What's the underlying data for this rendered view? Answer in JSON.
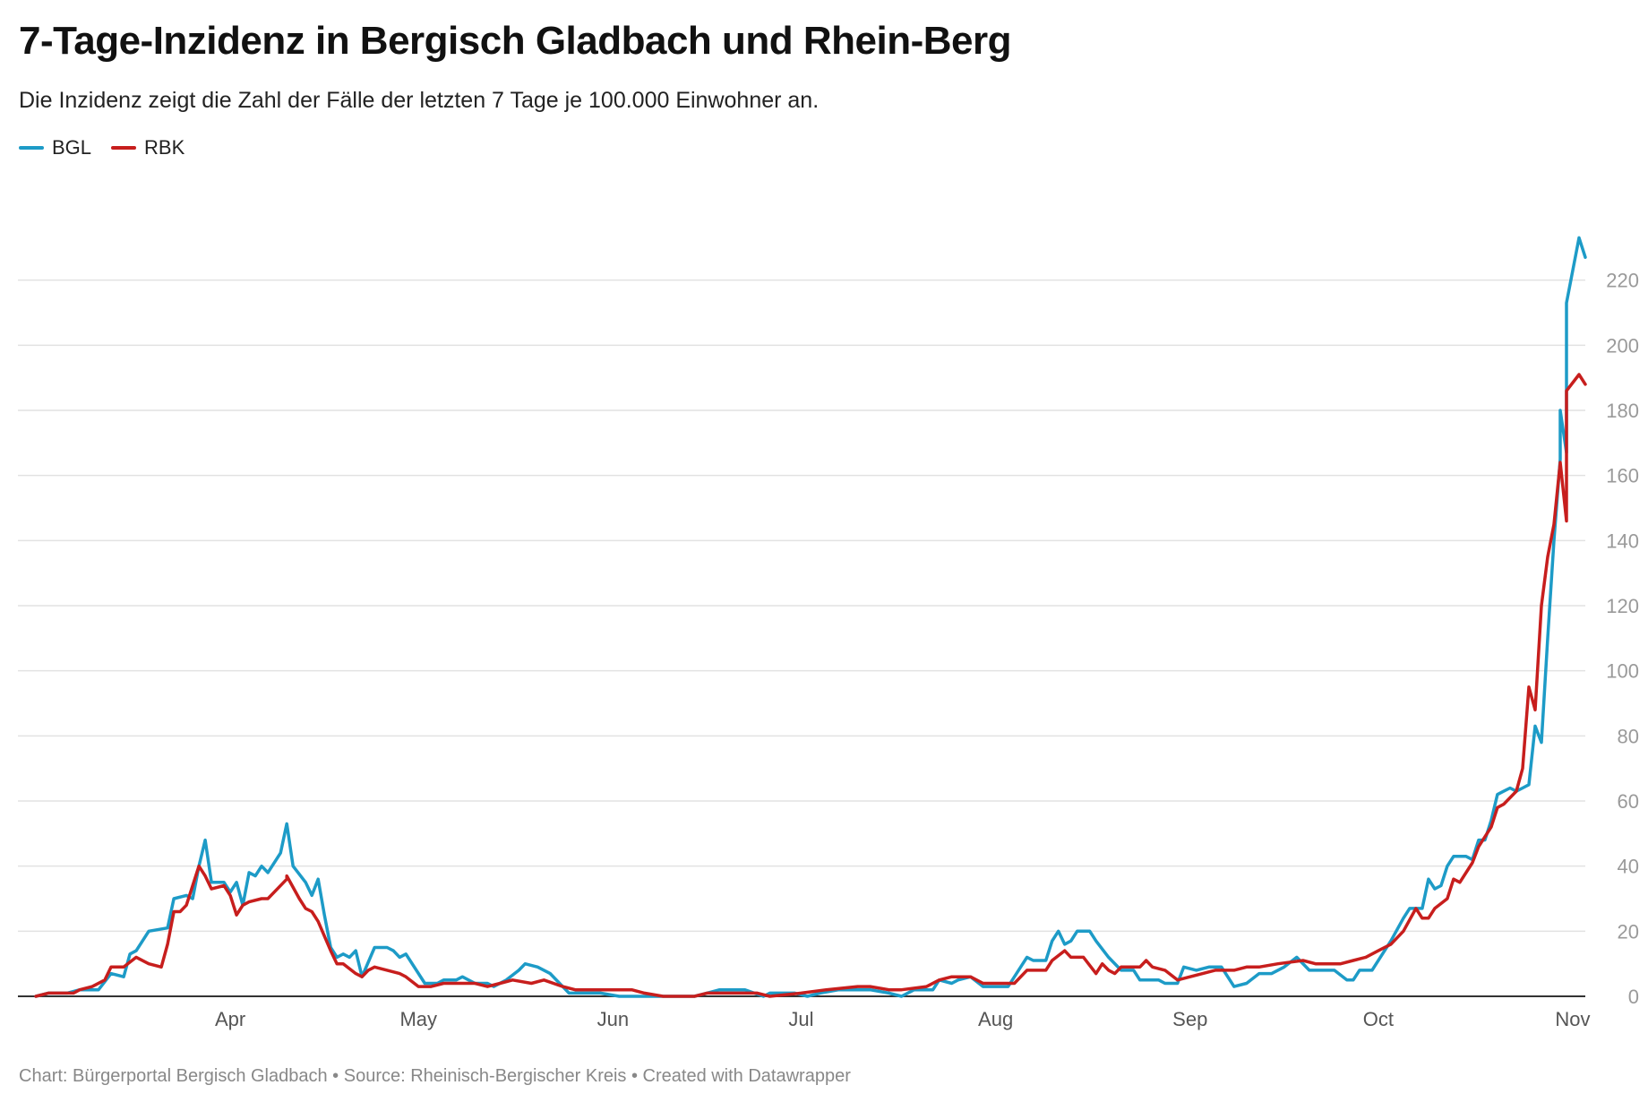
{
  "header": {
    "title": "7-Tage-Inzidenz in Bergisch Gladbach und Rhein-Berg",
    "subtitle": "Die Inzidenz zeigt die Zahl der Fälle der letzten 7 Tage je 100.000 Einwohner an."
  },
  "footer": {
    "text": "Chart: Bürgerportal Bergisch Gladbach • Source: Rheinisch-Bergischer Kreis • Created with Datawrapper"
  },
  "chart_data": {
    "type": "line",
    "title": "7-Tage-Inzidenz in Bergisch Gladbach und Rhein-Berg",
    "subtitle": "Die Inzidenz zeigt die Zahl der Fälle der letzten 7 Tage je 100.000 Einwohner an.",
    "xlabel": "",
    "ylabel": "",
    "x_range": [
      "2020-03-01",
      "2020-11-03"
    ],
    "ylim": [
      0,
      240
    ],
    "y_ticks": [
      0,
      20,
      40,
      60,
      80,
      100,
      120,
      140,
      160,
      180,
      200,
      220
    ],
    "x_ticks": [
      {
        "label": "Apr",
        "date": "2020-04-01"
      },
      {
        "label": "May",
        "date": "2020-05-01"
      },
      {
        "label": "Jun",
        "date": "2020-06-01"
      },
      {
        "label": "Jul",
        "date": "2020-07-01"
      },
      {
        "label": "Aug",
        "date": "2020-08-01"
      },
      {
        "label": "Sep",
        "date": "2020-09-01"
      },
      {
        "label": "Oct",
        "date": "2020-10-01"
      },
      {
        "label": "Nov",
        "date": "2020-11-01"
      }
    ],
    "grid": true,
    "legend_position": "top-left",
    "series": [
      {
        "name": "BGL",
        "color": "#1d9bc7",
        "points": [
          [
            "2020-03-01",
            0
          ],
          [
            "2020-03-03",
            1
          ],
          [
            "2020-03-06",
            1
          ],
          [
            "2020-03-08",
            2
          ],
          [
            "2020-03-11",
            2
          ],
          [
            "2020-03-13",
            7
          ],
          [
            "2020-03-15",
            6
          ],
          [
            "2020-03-16",
            13
          ],
          [
            "2020-03-17",
            14
          ],
          [
            "2020-03-19",
            20
          ],
          [
            "2020-03-22",
            21
          ],
          [
            "2020-03-23",
            30
          ],
          [
            "2020-03-25",
            31
          ],
          [
            "2020-03-26",
            30
          ],
          [
            "2020-03-27",
            40
          ],
          [
            "2020-03-28",
            48
          ],
          [
            "2020-03-29",
            35
          ],
          [
            "2020-03-31",
            35
          ],
          [
            "2020-04-01",
            32
          ],
          [
            "2020-04-02",
            35
          ],
          [
            "2020-04-03",
            28
          ],
          [
            "2020-04-04",
            38
          ],
          [
            "2020-04-05",
            37
          ],
          [
            "2020-04-06",
            40
          ],
          [
            "2020-04-07",
            38
          ],
          [
            "2020-04-09",
            44
          ],
          [
            "2020-04-10",
            53
          ],
          [
            "2020-04-11",
            40
          ],
          [
            "2020-04-13",
            35
          ],
          [
            "2020-04-14",
            31
          ],
          [
            "2020-04-15",
            36
          ],
          [
            "2020-04-16",
            25
          ],
          [
            "2020-04-17",
            15
          ],
          [
            "2020-04-18",
            12
          ],
          [
            "2020-04-19",
            13
          ],
          [
            "2020-04-20",
            12
          ],
          [
            "2020-04-21",
            14
          ],
          [
            "2020-04-22",
            6
          ],
          [
            "2020-04-24",
            15
          ],
          [
            "2020-04-26",
            15
          ],
          [
            "2020-04-27",
            14
          ],
          [
            "2020-04-28",
            12
          ],
          [
            "2020-04-29",
            13
          ],
          [
            "2020-05-02",
            4
          ],
          [
            "2020-05-04",
            4
          ],
          [
            "2020-05-05",
            5
          ],
          [
            "2020-05-07",
            5
          ],
          [
            "2020-05-08",
            6
          ],
          [
            "2020-05-10",
            4
          ],
          [
            "2020-05-12",
            4
          ],
          [
            "2020-05-13",
            3
          ],
          [
            "2020-05-15",
            5
          ],
          [
            "2020-05-17",
            8
          ],
          [
            "2020-05-18",
            10
          ],
          [
            "2020-05-20",
            9
          ],
          [
            "2020-05-22",
            7
          ],
          [
            "2020-05-25",
            1
          ],
          [
            "2020-05-30",
            1
          ],
          [
            "2020-06-02",
            0
          ],
          [
            "2020-06-10",
            0
          ],
          [
            "2020-06-14",
            0
          ],
          [
            "2020-06-16",
            1
          ],
          [
            "2020-06-18",
            2
          ],
          [
            "2020-06-22",
            2
          ],
          [
            "2020-06-25",
            0
          ],
          [
            "2020-06-26",
            1
          ],
          [
            "2020-06-30",
            1
          ],
          [
            "2020-07-02",
            0
          ],
          [
            "2020-07-04",
            1
          ],
          [
            "2020-07-07",
            2
          ],
          [
            "2020-07-10",
            2
          ],
          [
            "2020-07-12",
            2
          ],
          [
            "2020-07-15",
            1
          ],
          [
            "2020-07-17",
            0
          ],
          [
            "2020-07-19",
            2
          ],
          [
            "2020-07-22",
            2
          ],
          [
            "2020-07-23",
            5
          ],
          [
            "2020-07-25",
            4
          ],
          [
            "2020-07-26",
            5
          ],
          [
            "2020-07-28",
            6
          ],
          [
            "2020-07-30",
            3
          ],
          [
            "2020-08-01",
            3
          ],
          [
            "2020-08-03",
            3
          ],
          [
            "2020-08-06",
            12
          ],
          [
            "2020-08-07",
            11
          ],
          [
            "2020-08-09",
            11
          ],
          [
            "2020-08-10",
            17
          ],
          [
            "2020-08-11",
            20
          ],
          [
            "2020-08-12",
            16
          ],
          [
            "2020-08-13",
            17
          ],
          [
            "2020-08-14",
            20
          ],
          [
            "2020-08-16",
            20
          ],
          [
            "2020-08-17",
            17
          ],
          [
            "2020-08-19",
            12
          ],
          [
            "2020-08-21",
            8
          ],
          [
            "2020-08-23",
            8
          ],
          [
            "2020-08-24",
            5
          ],
          [
            "2020-08-27",
            5
          ],
          [
            "2020-08-28",
            4
          ],
          [
            "2020-08-30",
            4
          ],
          [
            "2020-08-31",
            9
          ],
          [
            "2020-09-02",
            8
          ],
          [
            "2020-09-04",
            9
          ],
          [
            "2020-09-06",
            9
          ],
          [
            "2020-09-08",
            3
          ],
          [
            "2020-09-10",
            4
          ],
          [
            "2020-09-12",
            7
          ],
          [
            "2020-09-14",
            7
          ],
          [
            "2020-09-16",
            9
          ],
          [
            "2020-09-18",
            12
          ],
          [
            "2020-09-20",
            8
          ],
          [
            "2020-09-24",
            8
          ],
          [
            "2020-09-26",
            5
          ],
          [
            "2020-09-27",
            5
          ],
          [
            "2020-09-28",
            8
          ],
          [
            "2020-09-30",
            8
          ],
          [
            "2020-10-02",
            14
          ],
          [
            "2020-10-03",
            17
          ],
          [
            "2020-10-05",
            24
          ],
          [
            "2020-10-06",
            27
          ],
          [
            "2020-10-08",
            27
          ],
          [
            "2020-10-09",
            36
          ],
          [
            "2020-10-10",
            33
          ],
          [
            "2020-10-11",
            34
          ],
          [
            "2020-10-12",
            40
          ],
          [
            "2020-10-13",
            43
          ],
          [
            "2020-10-15",
            43
          ],
          [
            "2020-10-16",
            42
          ],
          [
            "2020-10-17",
            48
          ],
          [
            "2020-10-18",
            48
          ],
          [
            "2020-10-19",
            54
          ],
          [
            "2020-10-20",
            62
          ],
          [
            "2020-10-21",
            63
          ],
          [
            "2020-10-22",
            64
          ],
          [
            "2020-10-23",
            63
          ],
          [
            "2020-10-24",
            64
          ],
          [
            "2020-10-25",
            65
          ],
          [
            "2020-10-26",
            83
          ],
          [
            "2020-10-27",
            78
          ],
          [
            "2020-10-28",
            110
          ],
          [
            "2020-10-29",
            140
          ],
          [
            "2020-10-30",
            165
          ],
          [
            "2020-10-30",
            180
          ],
          [
            "2020-10-31",
            167
          ],
          [
            "2020-10-31",
            213
          ],
          [
            "2020-11-02",
            233
          ],
          [
            "2020-11-03",
            227
          ]
        ]
      },
      {
        "name": "RBK",
        "color": "#c71e1d",
        "points": [
          [
            "2020-03-01",
            0
          ],
          [
            "2020-03-03",
            1
          ],
          [
            "2020-03-07",
            1
          ],
          [
            "2020-03-08",
            2
          ],
          [
            "2020-03-10",
            3
          ],
          [
            "2020-03-12",
            5
          ],
          [
            "2020-03-13",
            9
          ],
          [
            "2020-03-15",
            9
          ],
          [
            "2020-03-17",
            12
          ],
          [
            "2020-03-19",
            10
          ],
          [
            "2020-03-21",
            9
          ],
          [
            "2020-03-22",
            16
          ],
          [
            "2020-03-23",
            26
          ],
          [
            "2020-03-24",
            26
          ],
          [
            "2020-03-25",
            28
          ],
          [
            "2020-03-27",
            40
          ],
          [
            "2020-03-28",
            37
          ],
          [
            "2020-03-29",
            33
          ],
          [
            "2020-03-31",
            34
          ],
          [
            "2020-04-01",
            31
          ],
          [
            "2020-04-02",
            25
          ],
          [
            "2020-04-03",
            28
          ],
          [
            "2020-04-04",
            29
          ],
          [
            "2020-04-06",
            30
          ],
          [
            "2020-04-07",
            30
          ],
          [
            "2020-04-08",
            32
          ],
          [
            "2020-04-10",
            36
          ],
          [
            "2020-04-10",
            37
          ],
          [
            "2020-04-12",
            30
          ],
          [
            "2020-04-13",
            27
          ],
          [
            "2020-04-14",
            26
          ],
          [
            "2020-04-15",
            23
          ],
          [
            "2020-04-17",
            14
          ],
          [
            "2020-04-18",
            10
          ],
          [
            "2020-04-19",
            10
          ],
          [
            "2020-04-21",
            7
          ],
          [
            "2020-04-22",
            6
          ],
          [
            "2020-04-23",
            8
          ],
          [
            "2020-04-24",
            9
          ],
          [
            "2020-04-26",
            8
          ],
          [
            "2020-04-28",
            7
          ],
          [
            "2020-04-29",
            6
          ],
          [
            "2020-05-01",
            3
          ],
          [
            "2020-05-03",
            3
          ],
          [
            "2020-05-05",
            4
          ],
          [
            "2020-05-06",
            4
          ],
          [
            "2020-05-10",
            4
          ],
          [
            "2020-05-12",
            3
          ],
          [
            "2020-05-14",
            4
          ],
          [
            "2020-05-16",
            5
          ],
          [
            "2020-05-19",
            4
          ],
          [
            "2020-05-21",
            5
          ],
          [
            "2020-05-24",
            3
          ],
          [
            "2020-05-26",
            2
          ],
          [
            "2020-05-30",
            2
          ],
          [
            "2020-06-02",
            2
          ],
          [
            "2020-06-04",
            2
          ],
          [
            "2020-06-06",
            1
          ],
          [
            "2020-06-09",
            0
          ],
          [
            "2020-06-14",
            0
          ],
          [
            "2020-06-16",
            1
          ],
          [
            "2020-06-24",
            1
          ],
          [
            "2020-06-26",
            0
          ],
          [
            "2020-07-01",
            1
          ],
          [
            "2020-07-05",
            2
          ],
          [
            "2020-07-10",
            3
          ],
          [
            "2020-07-12",
            3
          ],
          [
            "2020-07-15",
            2
          ],
          [
            "2020-07-17",
            2
          ],
          [
            "2020-07-21",
            3
          ],
          [
            "2020-07-23",
            5
          ],
          [
            "2020-07-25",
            6
          ],
          [
            "2020-07-28",
            6
          ],
          [
            "2020-07-30",
            4
          ],
          [
            "2020-08-02",
            4
          ],
          [
            "2020-08-04",
            4
          ],
          [
            "2020-08-06",
            8
          ],
          [
            "2020-08-09",
            8
          ],
          [
            "2020-08-10",
            11
          ],
          [
            "2020-08-12",
            14
          ],
          [
            "2020-08-13",
            12
          ],
          [
            "2020-08-15",
            12
          ],
          [
            "2020-08-17",
            7
          ],
          [
            "2020-08-18",
            10
          ],
          [
            "2020-08-19",
            8
          ],
          [
            "2020-08-20",
            7
          ],
          [
            "2020-08-21",
            9
          ],
          [
            "2020-08-24",
            9
          ],
          [
            "2020-08-25",
            11
          ],
          [
            "2020-08-26",
            9
          ],
          [
            "2020-08-28",
            8
          ],
          [
            "2020-08-30",
            5
          ],
          [
            "2020-09-01",
            6
          ],
          [
            "2020-09-03",
            7
          ],
          [
            "2020-09-05",
            8
          ],
          [
            "2020-09-08",
            8
          ],
          [
            "2020-09-10",
            9
          ],
          [
            "2020-09-12",
            9
          ],
          [
            "2020-09-15",
            10
          ],
          [
            "2020-09-19",
            11
          ],
          [
            "2020-09-21",
            10
          ],
          [
            "2020-09-25",
            10
          ],
          [
            "2020-09-27",
            11
          ],
          [
            "2020-09-29",
            12
          ],
          [
            "2020-10-01",
            14
          ],
          [
            "2020-10-03",
            16
          ],
          [
            "2020-10-05",
            20
          ],
          [
            "2020-10-07",
            27
          ],
          [
            "2020-10-08",
            24
          ],
          [
            "2020-10-09",
            24
          ],
          [
            "2020-10-10",
            27
          ],
          [
            "2020-10-12",
            30
          ],
          [
            "2020-10-13",
            36
          ],
          [
            "2020-10-14",
            35
          ],
          [
            "2020-10-16",
            41
          ],
          [
            "2020-10-17",
            46
          ],
          [
            "2020-10-19",
            52
          ],
          [
            "2020-10-20",
            58
          ],
          [
            "2020-10-21",
            59
          ],
          [
            "2020-10-23",
            63
          ],
          [
            "2020-10-24",
            70
          ],
          [
            "2020-10-25",
            95
          ],
          [
            "2020-10-26",
            88
          ],
          [
            "2020-10-27",
            120
          ],
          [
            "2020-10-28",
            135
          ],
          [
            "2020-10-29",
            145
          ],
          [
            "2020-10-30",
            164
          ],
          [
            "2020-10-31",
            146
          ],
          [
            "2020-10-31",
            186
          ],
          [
            "2020-11-02",
            191
          ],
          [
            "2020-11-03",
            188
          ]
        ]
      }
    ]
  }
}
